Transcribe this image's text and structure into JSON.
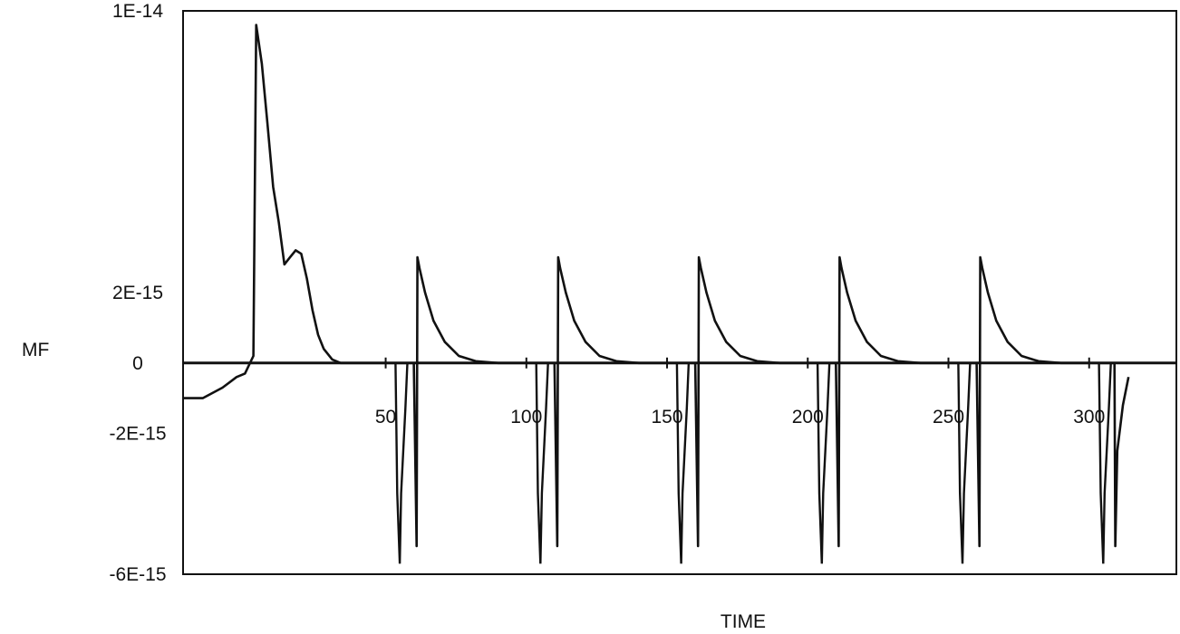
{
  "chart_data": {
    "type": "line",
    "title": "",
    "xlabel": "TIME",
    "ylabel": "MF",
    "xlim": [
      -22,
      331
    ],
    "ylim": [
      -6e-15,
      1e-14
    ],
    "x_ticks": [
      50,
      100,
      150,
      200,
      250,
      300
    ],
    "y_ticks": [
      {
        "label": "1E-14",
        "value": 1e-14
      },
      {
        "label": "2E-15",
        "value": 2e-15
      },
      {
        "label": "0",
        "value": 0
      },
      {
        "label": "-2E-15",
        "value": -2e-15
      },
      {
        "label": "-6E-15",
        "value": -6e-15
      }
    ],
    "grid": false,
    "legend": "none",
    "line_color": "#111111",
    "series": [
      {
        "name": "",
        "x": [
          -22,
          -15,
          -8,
          -3,
          0,
          3,
          4,
          6,
          8,
          10,
          12,
          14,
          16,
          18,
          20,
          22,
          24,
          26,
          28,
          31,
          34,
          38,
          44,
          52,
          57,
          60,
          61,
          61.3,
          62,
          64,
          67,
          71,
          76,
          82,
          90,
          100,
          107,
          110,
          111,
          111.3,
          112,
          114,
          117,
          121,
          126,
          132,
          140,
          150,
          157,
          160,
          161,
          161.3,
          162,
          164,
          167,
          171,
          176,
          182,
          190,
          200,
          207,
          210,
          211,
          211.3,
          212,
          214,
          217,
          221,
          226,
          232,
          240,
          250,
          257,
          260,
          261,
          261.3,
          262,
          264,
          267,
          271,
          276,
          282,
          290,
          300,
          307,
          309,
          309.3,
          310,
          312,
          314
        ],
        "y": [
          -1e-15,
          -1e-15,
          -7e-16,
          -4e-16,
          -3e-16,
          2e-16,
          9.6e-15,
          8.5e-15,
          6.8e-15,
          5e-15,
          4e-15,
          2.8e-15,
          3e-15,
          3.2e-15,
          3.1e-15,
          2.4e-15,
          1.5e-15,
          8e-16,
          4e-16,
          1e-16,
          0,
          0,
          0,
          0,
          0,
          0,
          -5.2e-15,
          3e-15,
          2.7e-15,
          2e-15,
          1.2e-15,
          6e-16,
          2e-16,
          5e-17,
          0,
          0,
          0,
          0,
          -5.2e-15,
          3e-15,
          2.7e-15,
          2e-15,
          1.2e-15,
          6e-16,
          2e-16,
          5e-17,
          0,
          0,
          0,
          0,
          -5.2e-15,
          3e-15,
          2.7e-15,
          2e-15,
          1.2e-15,
          6e-16,
          2e-16,
          5e-17,
          0,
          0,
          0,
          0,
          -5.2e-15,
          3e-15,
          2.7e-15,
          2e-15,
          1.2e-15,
          6e-16,
          2e-16,
          5e-17,
          0,
          0,
          0,
          0,
          -5.2e-15,
          3e-15,
          2.7e-15,
          2e-15,
          1.2e-15,
          6e-16,
          2e-16,
          5e-17,
          0,
          0,
          0,
          0,
          -5.2e-15,
          -2.5e-15,
          -1.2e-15,
          -4e-16
        ]
      }
    ],
    "spikes": [
      {
        "x_start": 53.5,
        "x_min": 55,
        "x_end": 57,
        "y_min": -5.7e-15,
        "y_shoulder": -3.7e-15
      },
      {
        "x_start": 103.5,
        "x_min": 105,
        "x_end": 107,
        "y_min": -5.7e-15,
        "y_shoulder": -3.7e-15
      },
      {
        "x_start": 153.5,
        "x_min": 155,
        "x_end": 157,
        "y_min": -5.7e-15,
        "y_shoulder": -3.7e-15
      },
      {
        "x_start": 203.5,
        "x_min": 205,
        "x_end": 207,
        "y_min": -5.7e-15,
        "y_shoulder": -3.7e-15
      },
      {
        "x_start": 253.5,
        "x_min": 255,
        "x_end": 257,
        "y_min": -5.7e-15,
        "y_shoulder": -3.7e-15
      },
      {
        "x_start": 303.5,
        "x_min": 305,
        "x_end": 307,
        "y_min": -5.7e-15,
        "y_shoulder": -3.7e-15
      }
    ]
  }
}
